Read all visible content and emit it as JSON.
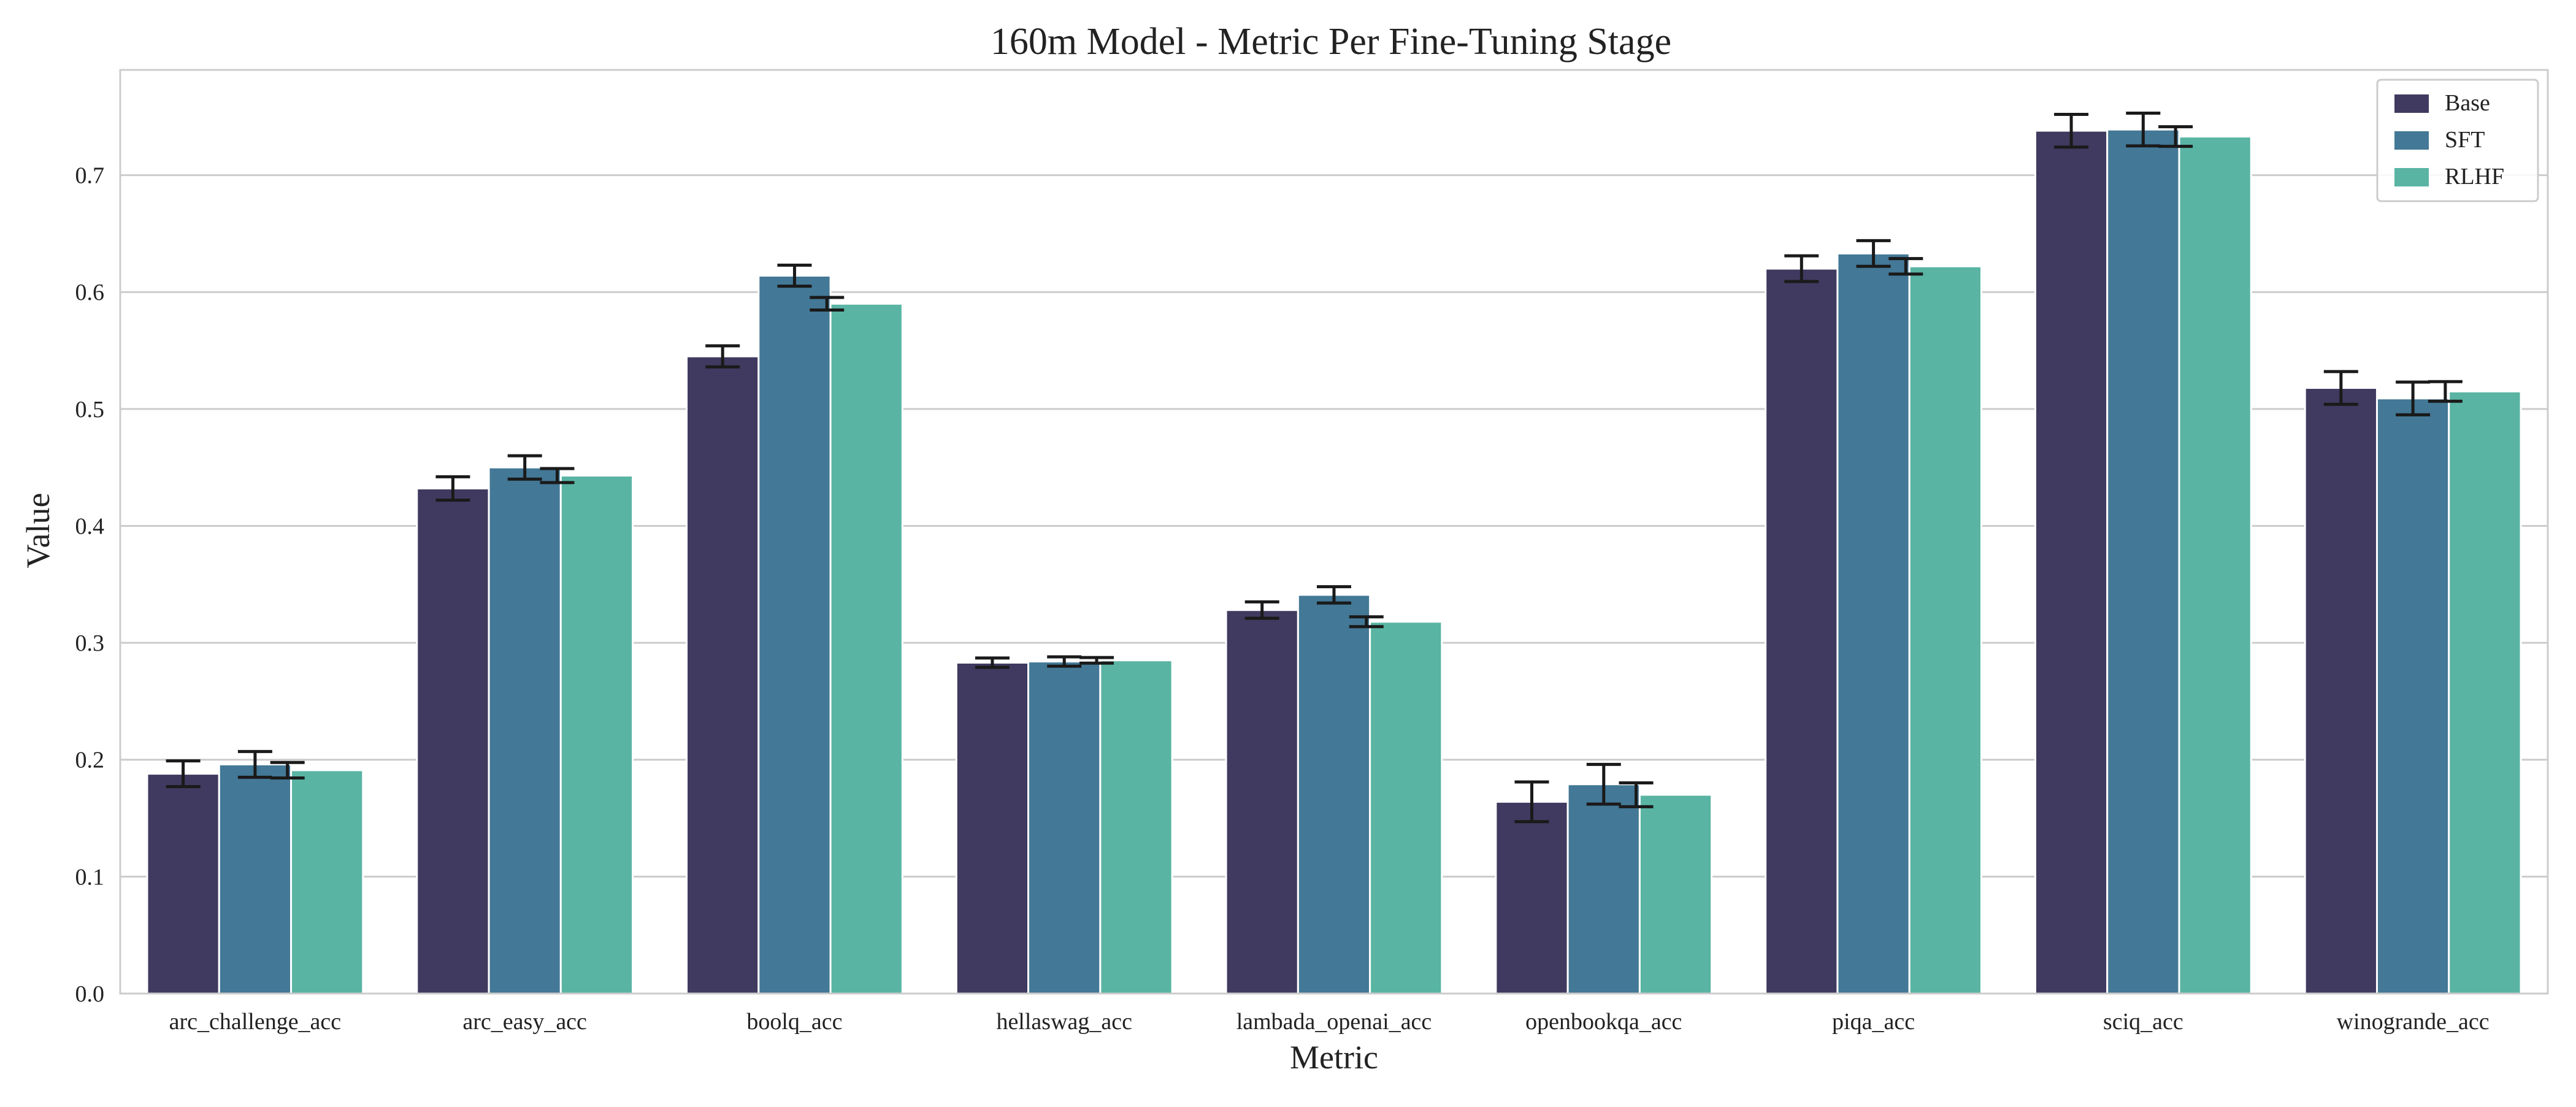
{
  "chart_data": {
    "type": "bar",
    "title": "160m Model - Metric Per Fine-Tuning Stage",
    "xlabel": "Metric",
    "ylabel": "Value",
    "ylim": [
      0,
      0.79
    ],
    "yticks": [
      "0.0",
      "0.1",
      "0.2",
      "0.3",
      "0.4",
      "0.5",
      "0.6",
      "0.7"
    ],
    "grid": true,
    "legend_position": "top-right",
    "categories": [
      "arc_challenge_acc",
      "arc_easy_acc",
      "boolq_acc",
      "hellaswag_acc",
      "lambada_openai_acc",
      "openbookqa_acc",
      "piqa_acc",
      "sciq_acc",
      "winogrande_acc"
    ],
    "series": [
      {
        "name": "Base",
        "color": "#403a60",
        "values": [
          0.188,
          0.432,
          0.545,
          0.283,
          0.328,
          0.164,
          0.62,
          0.738,
          0.518
        ],
        "errors": [
          0.011,
          0.01,
          0.009,
          0.004,
          0.007,
          0.017,
          0.011,
          0.014,
          0.014
        ]
      },
      {
        "name": "SFT",
        "color": "#437896",
        "values": [
          0.196,
          0.45,
          0.614,
          0.284,
          0.341,
          0.179,
          0.633,
          0.739,
          0.509
        ],
        "errors": [
          0.011,
          0.01,
          0.009,
          0.004,
          0.007,
          0.017,
          0.011,
          0.014,
          0.014
        ]
      },
      {
        "name": "RLHF",
        "color": "#59b4a3",
        "values": [
          0.191,
          0.443,
          0.59,
          0.285,
          0.318,
          0.17,
          0.622,
          0.733,
          0.515
        ],
        "errors": [
          0.011,
          0.01,
          0.009,
          0.004,
          0.007,
          0.017,
          0.011,
          0.014,
          0.014
        ],
        "error_bar_on": "SFT"
      }
    ]
  }
}
